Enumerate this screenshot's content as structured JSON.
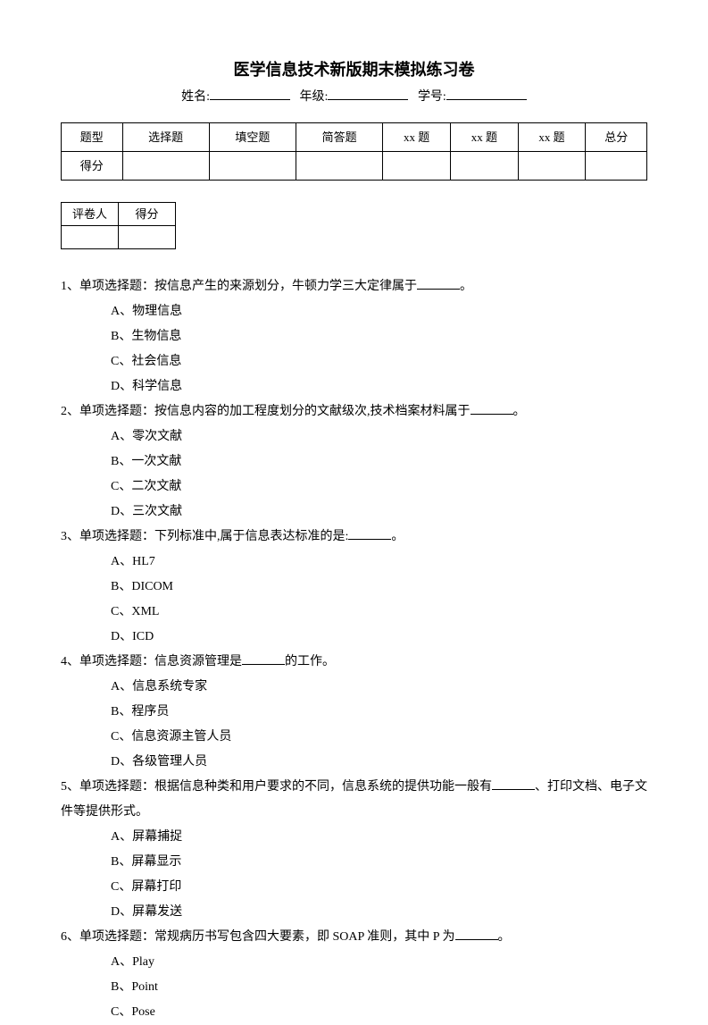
{
  "title": "医学信息技术新版期末模拟练习卷",
  "info": {
    "name_label": "姓名:",
    "grade_label": "年级:",
    "id_label": "学号:"
  },
  "scoreTable": {
    "row1": [
      "题型",
      "选择题",
      "填空题",
      "简答题",
      "xx 题",
      "xx 题",
      "xx 题",
      "总分"
    ],
    "row2_first": "得分"
  },
  "graderTable": {
    "c1": "评卷人",
    "c2": "得分"
  },
  "questions": [
    {
      "num": "1、",
      "stem_pre": "单项选择题：按信息产生的来源划分，牛顿力学三大定律属于",
      "stem_post": "。",
      "options": [
        "A、物理信息",
        "B、生物信息",
        "C、社会信息",
        "D、科学信息"
      ]
    },
    {
      "num": "2、",
      "stem_pre": "单项选择题：按信息内容的加工程度划分的文献级次,技术档案材料属于",
      "stem_post": "。",
      "options": [
        "A、零次文献",
        "B、一次文献",
        "C、二次文献",
        "D、三次文献"
      ]
    },
    {
      "num": "3、",
      "stem_pre": "单项选择题：下列标准中,属于信息表达标准的是:",
      "stem_post": "。",
      "options": [
        "A、HL7",
        "B、DICOM",
        "C、XML",
        "D、ICD"
      ]
    },
    {
      "num": "4、",
      "stem_pre": "单项选择题：信息资源管理是",
      "stem_post": "的工作。",
      "options": [
        "A、信息系统专家",
        "B、程序员",
        "C、信息资源主管人员",
        "D、各级管理人员"
      ]
    },
    {
      "num": "5、",
      "stem_pre": "单项选择题：根据信息种类和用户要求的不同，信息系统的提供功能一般有",
      "stem_post": "、打印文档、电子文件等提供形式。",
      "options": [
        "A、屏幕捕捉",
        "B、屏幕显示",
        "C、屏幕打印",
        "D、屏幕发送"
      ]
    },
    {
      "num": "6、",
      "stem_pre": "单项选择题：常规病历书写包含四大要素，即 SOAP 准则，其中 P 为",
      "stem_post": "。",
      "options": [
        "A、Play",
        "B、Point",
        "C、Pose"
      ]
    }
  ]
}
